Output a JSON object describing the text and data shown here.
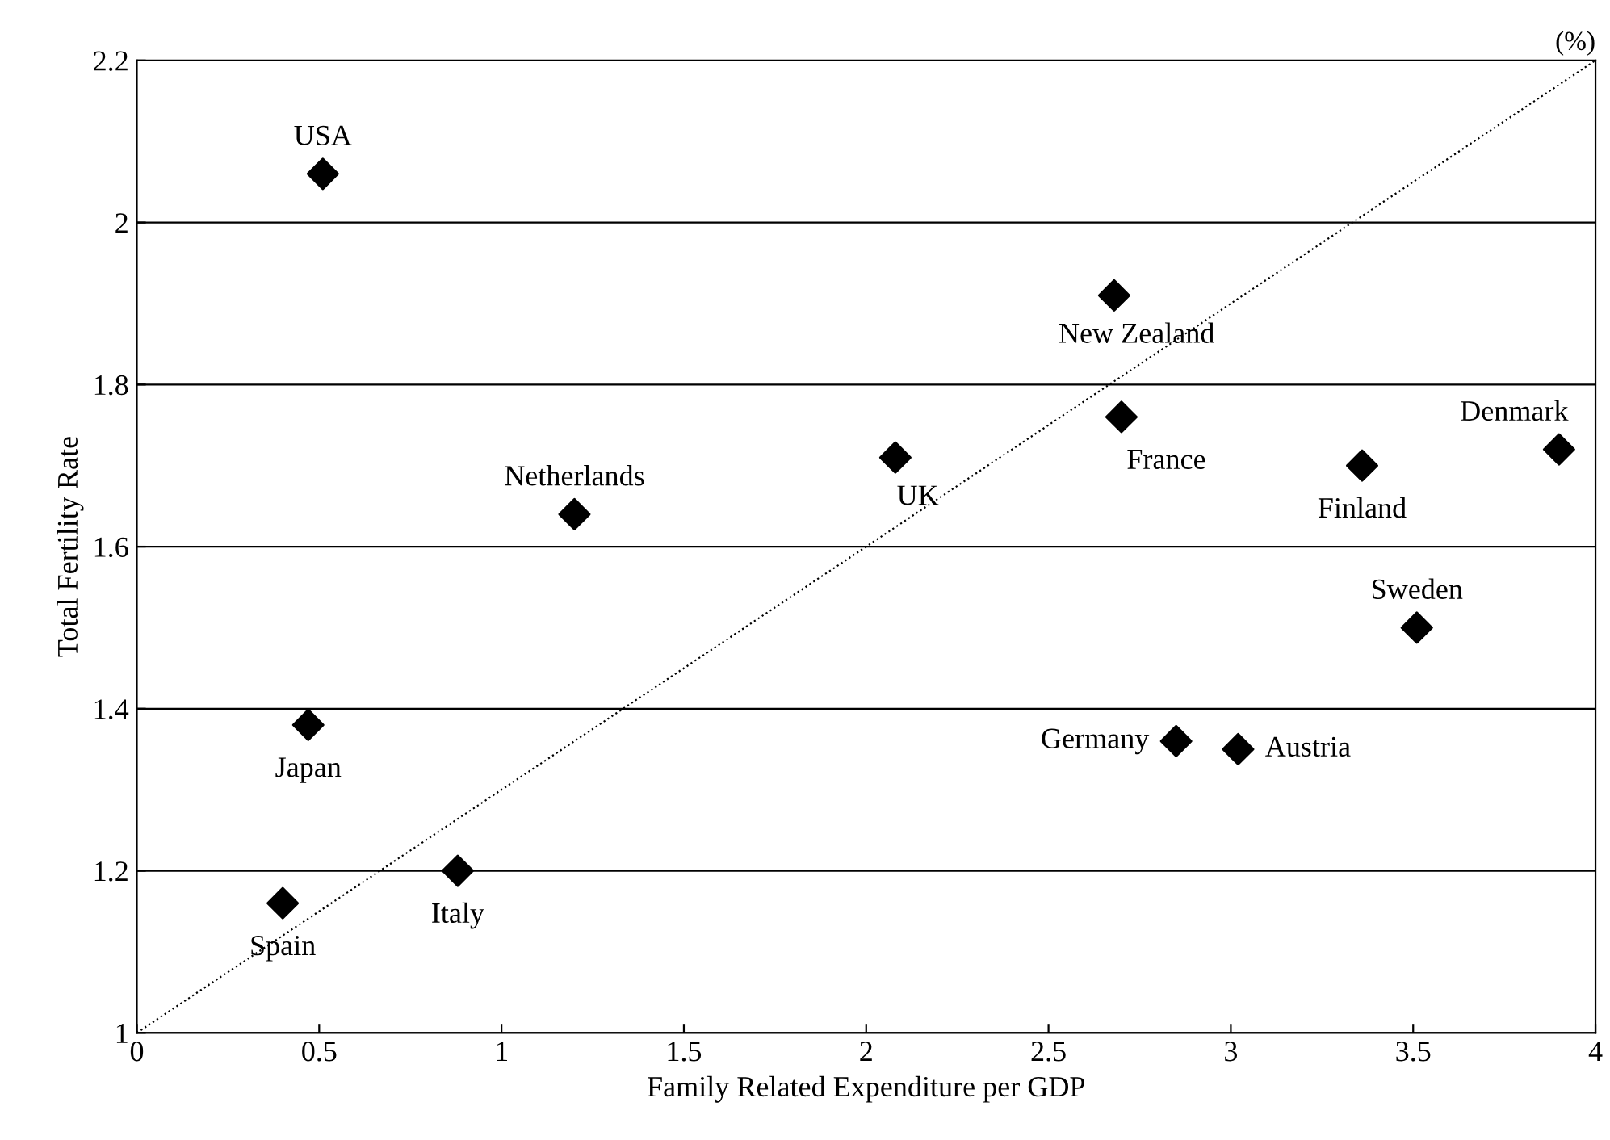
{
  "chart_data": {
    "type": "scatter",
    "xlabel": "Family Related Expenditure per GDP",
    "ylabel": "Total Fertility Rate",
    "series": [
      {
        "color": "#000000",
        "marker": "diamond",
        "x": [
          0.51,
          1.2,
          0.47,
          0.4,
          0.88,
          2.08,
          2.68,
          2.7,
          3.36,
          3.9,
          3.51,
          2.85,
          3.02
        ],
        "values": [
          2.06,
          1.64,
          1.38,
          1.16,
          1.2,
          1.71,
          1.91,
          1.76,
          1.7,
          1.72,
          1.5,
          1.36,
          1.35
        ]
      },
      {
        "type": "line",
        "color": "#000000",
        "marker": "none",
        "line_style": "dotted",
        "x": [
          0,
          4
        ],
        "values": [
          1,
          2.2
        ]
      }
    ],
    "annotations": [
      {
        "text": "USA",
        "x": 0.51,
        "y": 2.06
      },
      {
        "text": "Netherlands",
        "x": 1.2,
        "y": 1.64
      },
      {
        "text": "Japan",
        "x": 0.47,
        "y": 1.38
      },
      {
        "text": "Spain",
        "x": 0.4,
        "y": 1.16
      },
      {
        "text": "Italy",
        "x": 0.88,
        "y": 1.2
      },
      {
        "text": "UK",
        "x": 2.08,
        "y": 1.71
      },
      {
        "text": "New Zealand",
        "x": 2.68,
        "y": 1.91
      },
      {
        "text": "France",
        "x": 2.7,
        "y": 1.76
      },
      {
        "text": "Finland",
        "x": 3.36,
        "y": 1.7
      },
      {
        "text": "Denmark",
        "x": 3.9,
        "y": 1.72
      },
      {
        "text": "Sweden",
        "x": 3.51,
        "y": 1.5
      },
      {
        "text": "Germany",
        "x": 2.85,
        "y": 1.36
      },
      {
        "text": "Austria",
        "x": 3.02,
        "y": 1.35
      },
      "(%)"
    ],
    "xlim": [
      0,
      4
    ],
    "xticks": [
      0,
      0.5,
      1,
      1.5,
      2,
      2.5,
      3,
      3.5,
      4
    ],
    "ylim": [
      1,
      2.2
    ],
    "yticks": [
      1,
      1.2,
      1.4,
      1.6,
      1.8,
      2,
      2.2
    ],
    "grid": "y",
    "legend": false
  }
}
